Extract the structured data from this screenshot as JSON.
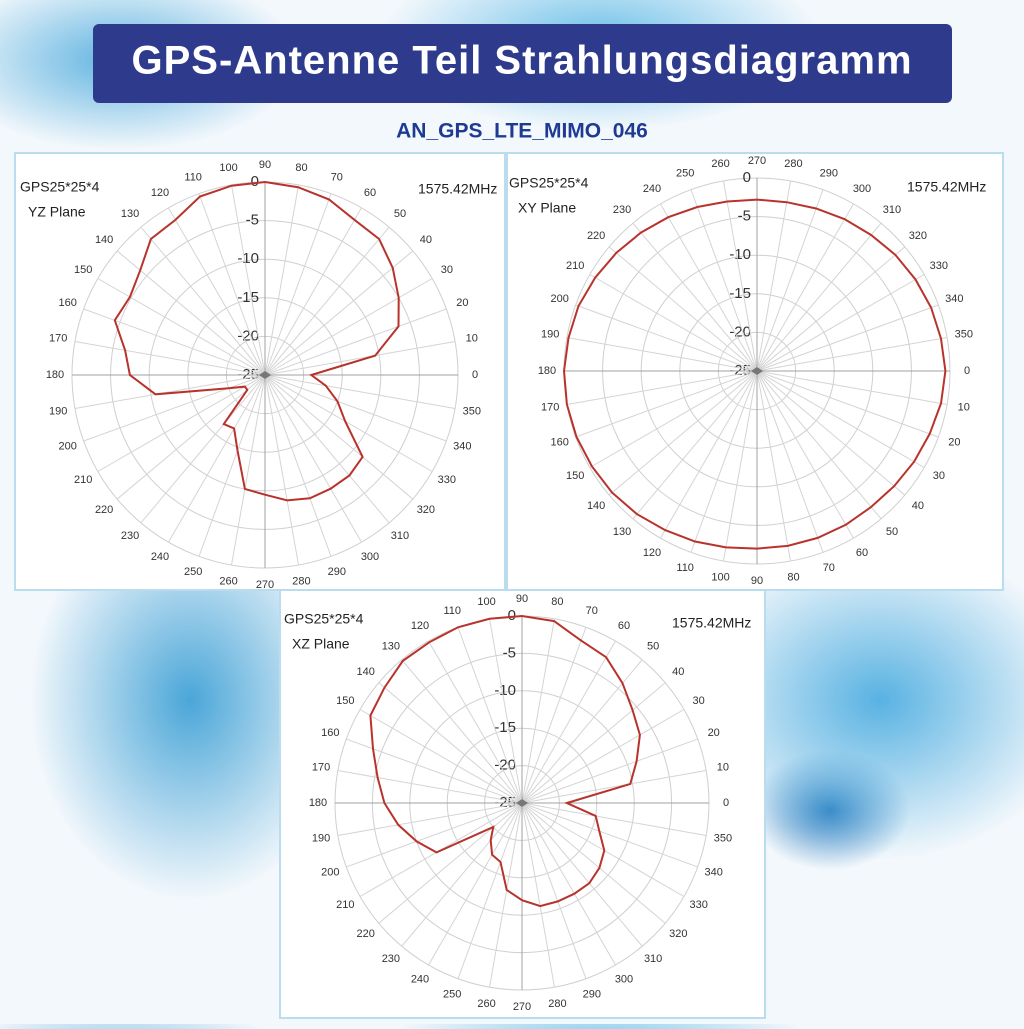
{
  "header": {
    "title": "GPS-Antenne Teil Strahlungsdiagramm",
    "subtitle": "AN_GPS_LTE_MIMO_046"
  },
  "chart_data": [
    {
      "type": "polar",
      "label": "GPS25*25*4",
      "plane": "YZ Plane",
      "frequency": "1575.42MHz",
      "direction": "counterclockwise",
      "x": [
        0,
        10,
        20,
        30,
        40,
        50,
        60,
        70,
        80,
        90,
        100,
        110,
        120,
        130,
        140,
        150,
        160,
        170,
        180,
        190,
        200,
        210,
        220,
        230,
        240,
        250,
        260,
        270,
        280,
        290,
        300,
        310,
        320,
        330,
        340,
        350
      ],
      "xticks": [
        0,
        10,
        20,
        30,
        40,
        50,
        60,
        70,
        80,
        90,
        100,
        110,
        120,
        130,
        140,
        150,
        160,
        170,
        180,
        190,
        200,
        210,
        220,
        230,
        240,
        250,
        260,
        270,
        280,
        290,
        300,
        310,
        320,
        330,
        340,
        350
      ],
      "ylim": [
        -25,
        0
      ],
      "yticks": [
        0,
        -5,
        -10,
        -15,
        -20,
        -25
      ],
      "series": [
        {
          "color": "#b8332c",
          "values": [
            -19,
            -10.5,
            -6.6,
            -5,
            -3.4,
            -2,
            -1.8,
            -0.8,
            -0.3,
            0,
            -0.1,
            -0.4,
            -1.8,
            -2,
            -3.9,
            -4.8,
            -4.3,
            -6.6,
            -7.5,
            -10.6,
            -20,
            -22,
            -22,
            -16.7,
            -17,
            -14.6,
            -10,
            -9.5,
            -8.5,
            -8,
            -8,
            -8,
            -8.5,
            -13,
            -15,
            -17
          ]
        }
      ]
    },
    {
      "type": "polar",
      "label": "GPS25*25*4",
      "plane": "XY Plane",
      "frequency": "1575.42MHz",
      "direction": "clockwise",
      "x": [
        0,
        10,
        20,
        30,
        40,
        50,
        60,
        70,
        80,
        90,
        100,
        110,
        120,
        130,
        140,
        150,
        160,
        170,
        180,
        190,
        200,
        210,
        220,
        230,
        240,
        250,
        260,
        270,
        280,
        290,
        300,
        310,
        320,
        330,
        340,
        350
      ],
      "xticks": [
        0,
        10,
        20,
        30,
        40,
        50,
        60,
        70,
        80,
        90,
        100,
        110,
        120,
        130,
        140,
        150,
        160,
        170,
        180,
        190,
        200,
        210,
        220,
        230,
        240,
        250,
        260,
        270,
        280,
        290,
        300,
        310,
        320,
        330,
        340,
        350
      ],
      "ylim": [
        -25,
        0
      ],
      "yticks": [
        0,
        -5,
        -10,
        -15,
        -20,
        -25
      ],
      "series": [
        {
          "color": "#b8332c",
          "values": [
            -0.6,
            -0.8,
            -1.2,
            -1.5,
            -1.8,
            -2,
            -2,
            -2,
            -2,
            -2,
            -1.8,
            -1.5,
            -1.2,
            -0.8,
            -0.5,
            -0.3,
            -0.1,
            0,
            0,
            -0.2,
            -0.4,
            -0.8,
            -1.2,
            -1.6,
            -2,
            -2.4,
            -2.7,
            -2.8,
            -2.8,
            -2.6,
            -2.3,
            -2,
            -1.6,
            -1.3,
            -1,
            -0.8
          ]
        }
      ]
    },
    {
      "type": "polar",
      "label": "GPS25*25*4",
      "plane": "XZ Plane",
      "frequency": "1575.42MHz",
      "direction": "counterclockwise",
      "x": [
        0,
        10,
        20,
        30,
        40,
        50,
        60,
        70,
        80,
        90,
        100,
        110,
        120,
        130,
        140,
        150,
        160,
        170,
        180,
        190,
        200,
        210,
        220,
        230,
        240,
        250,
        260,
        270,
        280,
        290,
        300,
        310,
        320,
        330,
        340,
        350
      ],
      "xticks": [
        0,
        10,
        20,
        30,
        40,
        50,
        60,
        70,
        80,
        90,
        100,
        110,
        120,
        130,
        140,
        150,
        160,
        170,
        180,
        190,
        200,
        210,
        220,
        230,
        240,
        250,
        260,
        270,
        280,
        290,
        300,
        310,
        320,
        330,
        340,
        350
      ],
      "ylim": [
        -25,
        0
      ],
      "yticks": [
        0,
        -5,
        -10,
        -15,
        -20,
        -25
      ],
      "series": [
        {
          "color": "#b8332c",
          "values": [
            -19,
            -10.3,
            -8.7,
            -6.8,
            -5.7,
            -4.1,
            -2.5,
            -1.9,
            -0.3,
            0,
            0,
            0,
            -0.2,
            -0.2,
            -1,
            -1.6,
            -3.8,
            -5.4,
            -6.6,
            -8.2,
            -10,
            -11.8,
            -20,
            -18.5,
            -17,
            -16.6,
            -13.2,
            -12,
            -11,
            -11,
            -11,
            -11,
            -11.5,
            -12.3,
            -14,
            -15
          ]
        }
      ]
    }
  ]
}
